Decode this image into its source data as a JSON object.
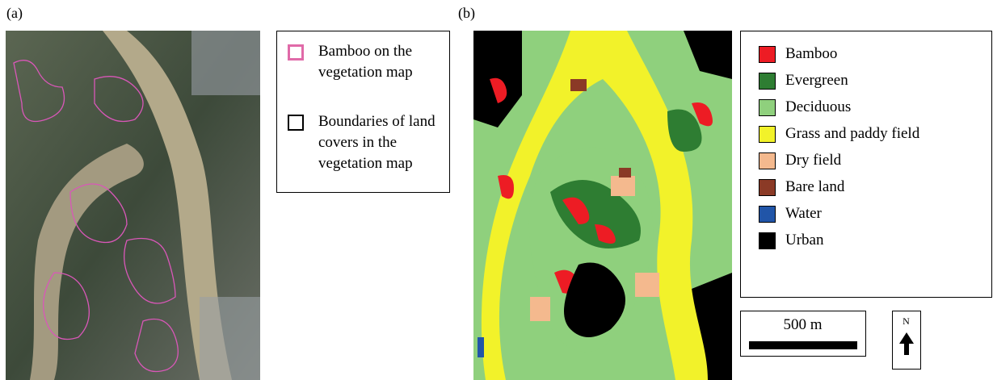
{
  "panel_a": {
    "label": "(a)",
    "legend": [
      {
        "text": "Bamboo on the vegetation map",
        "color": "#e06aa8"
      },
      {
        "text": "Boundaries of land covers in the vegetation map",
        "color": "#000000"
      }
    ]
  },
  "panel_b": {
    "label": "(b)",
    "legend": [
      {
        "text": "Bamboo",
        "color": "#ed1c24"
      },
      {
        "text": "Evergreen",
        "color": "#2e7d32"
      },
      {
        "text": "Deciduous",
        "color": "#8fd07d"
      },
      {
        "text": "Grass and paddy field",
        "color": "#f2f22a"
      },
      {
        "text": "Dry field",
        "color": "#f4b98e"
      },
      {
        "text": "Bare land",
        "color": "#8b3a26"
      },
      {
        "text": "Water",
        "color": "#2155a8"
      },
      {
        "text": "Urban",
        "color": "#000000"
      }
    ],
    "scale_bar": "500 m",
    "north": "N"
  }
}
